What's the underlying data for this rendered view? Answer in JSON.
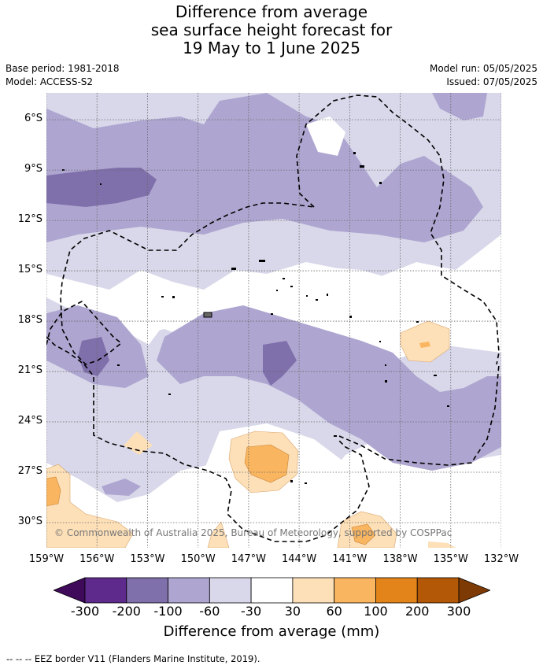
{
  "header": {
    "title_line1": "Difference from average",
    "title_line2": "sea surface height forecast for",
    "title_line3": "19 May to 1 June 2025",
    "base_period": "Base period: 1981-2018",
    "model": "Model: ACCESS-S2",
    "model_run": "Model run: 05/05/2025",
    "issued": "Issued: 07/05/2025"
  },
  "map": {
    "copyright": "© Commonwealth of Australia 2025, Bureau of Meteorology, supported by COSPPac",
    "lat_labels": [
      "6°S",
      "9°S",
      "12°S",
      "15°S",
      "18°S",
      "21°S",
      "24°S",
      "27°S",
      "30°S"
    ],
    "lon_labels": [
      "159°W",
      "156°W",
      "153°W",
      "150°W",
      "147°W",
      "144°W",
      "141°W",
      "138°W",
      "135°W",
      "132°W"
    ],
    "lat_values": [
      -6,
      -9,
      -12,
      -15,
      -18,
      -21,
      -24,
      -27,
      -30
    ],
    "lon_values": [
      -159,
      -156,
      -153,
      -150,
      -147,
      -144,
      -141,
      -138,
      -135,
      -132
    ],
    "extent": {
      "lon_min": -159,
      "lon_max": -132,
      "lat_max": -4.4,
      "lat_min": -31.5
    }
  },
  "colorbar": {
    "title": "Difference from average (mm)",
    "labels": [
      "-300",
      "-200",
      "-100",
      "-60",
      "-30",
      "30",
      "60",
      "100",
      "200",
      "300"
    ],
    "colors": [
      "#3f0a5a",
      "#5e2a8c",
      "#7f6fab",
      "#aea6d0",
      "#d8d8ea",
      "#ffffff",
      "#fde0b8",
      "#f9b55f",
      "#e3841a",
      "#b35807",
      "#7d3a05"
    ]
  },
  "legend": {
    "eez_text": "-- -- -- EEZ border V11 (Flanders Marine Institute, 2019)."
  }
}
